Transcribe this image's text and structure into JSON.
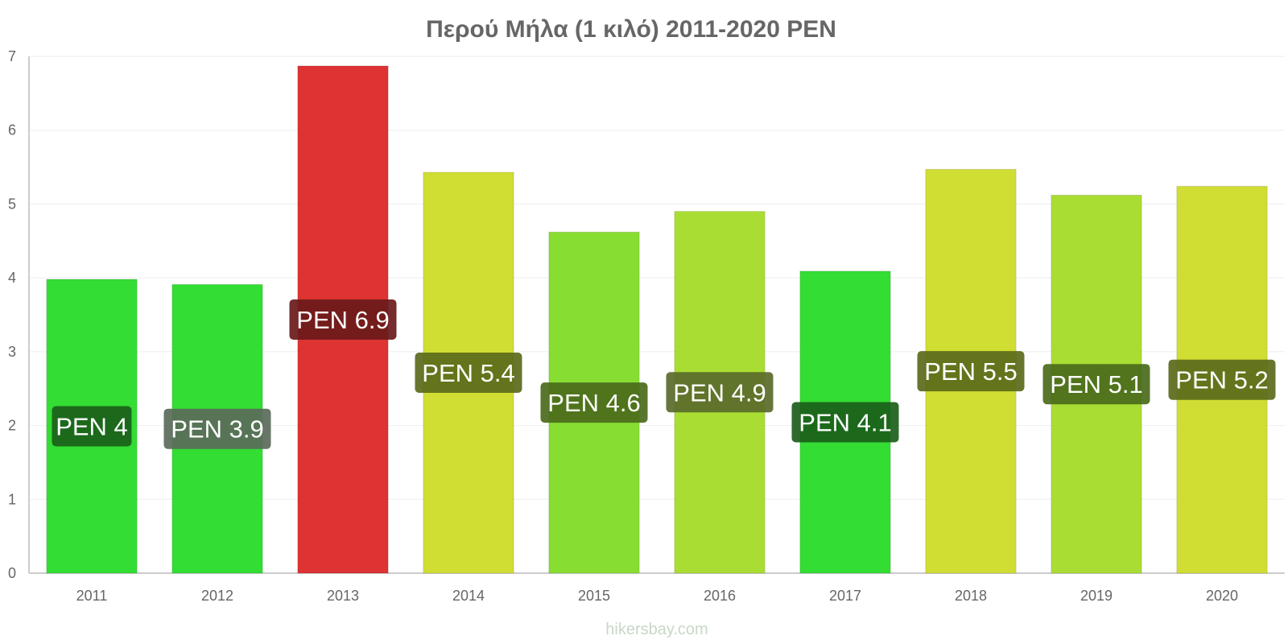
{
  "chart_data": {
    "type": "bar",
    "title": "Περού Μήλα (1 κιλό) 2011-2020 PEN",
    "xlabel": "",
    "ylabel": "",
    "ylim": [
      0,
      7
    ],
    "yticks": [
      "0",
      "1",
      "2",
      "3",
      "4",
      "5",
      "6",
      "7"
    ],
    "grid": true,
    "legend": "none",
    "categories": [
      "2011",
      "2012",
      "2013",
      "2014",
      "2015",
      "2016",
      "2017",
      "2018",
      "2019",
      "2020"
    ],
    "values": [
      3.98,
      3.91,
      6.87,
      5.43,
      4.62,
      4.9,
      4.09,
      5.47,
      5.12,
      5.24
    ],
    "data_labels": [
      "PEN 4",
      "PEN 3.9",
      "PEN 6.9",
      "PEN 5.4",
      "PEN 4.6",
      "PEN 4.9",
      "PEN 4.1",
      "PEN 5.5",
      "PEN 5.1",
      "PEN 5.2"
    ],
    "colors": [
      "#33dd33",
      "#33dd33",
      "#dd3333",
      "#d0dd33",
      "#88dd33",
      "#aadd33",
      "#33dd33",
      "#d0dd33",
      "#aadd33",
      "#d0dd33"
    ],
    "label_bg_colors": [
      "#1a5e1a",
      "#5a6a5a",
      "#6a1a1a",
      "#5a6a1a",
      "#4a6a1a",
      "#5a6a2a",
      "#1a5e1a",
      "#5a6a1a",
      "#4a6a1a",
      "#5a6a1a"
    ]
  },
  "watermark": "hikersbay.com"
}
